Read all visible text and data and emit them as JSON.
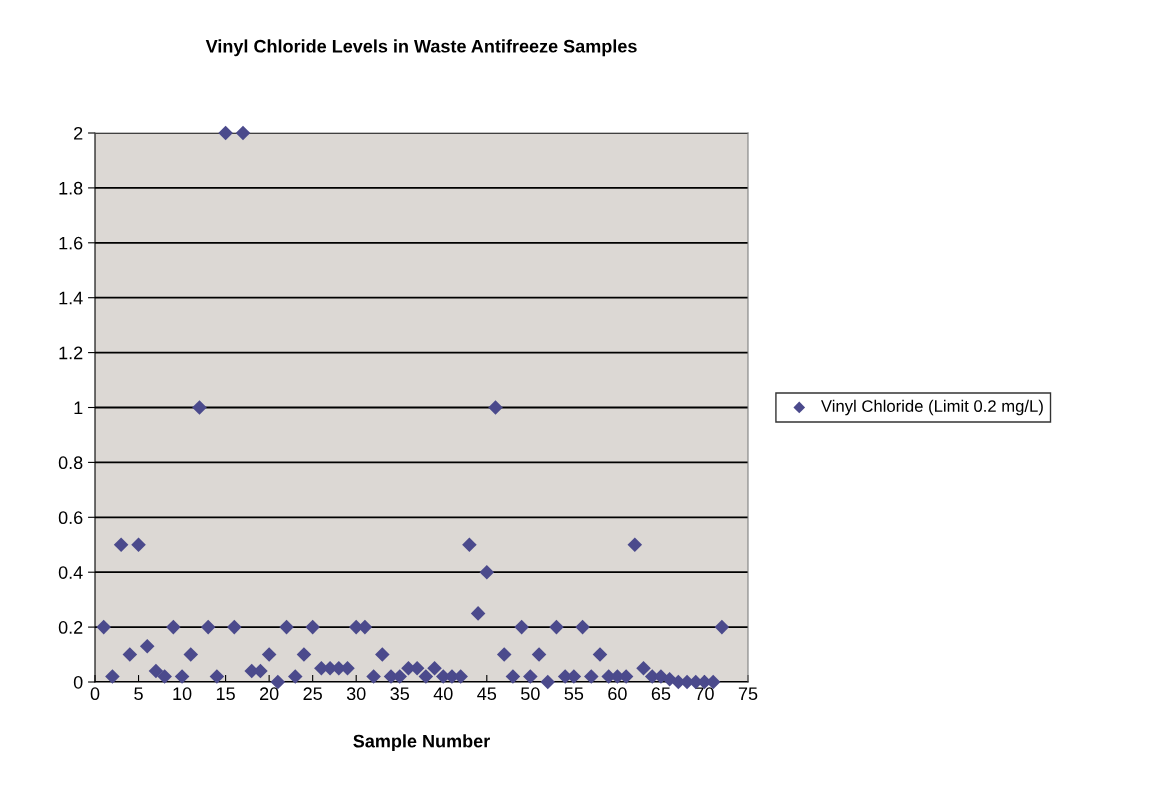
{
  "chart_data": {
    "type": "scatter",
    "title": "Vinyl Chloride Levels in Waste Antifreeze Samples",
    "xlabel": "Sample Number",
    "x": [
      1,
      2,
      3,
      4,
      5,
      6,
      7,
      8,
      9,
      10,
      11,
      12,
      13,
      14,
      15,
      16,
      17,
      18,
      19,
      20,
      21,
      22,
      23,
      24,
      25,
      26,
      27,
      28,
      29,
      30,
      31,
      32,
      33,
      34,
      35,
      36,
      37,
      38,
      39,
      40,
      41,
      42,
      43,
      44,
      45,
      46,
      47,
      48,
      49,
      50,
      51,
      52,
      53,
      54,
      55,
      56,
      57,
      58,
      59,
      60,
      61,
      62,
      63,
      64,
      65,
      66,
      67,
      68,
      69,
      70,
      71,
      72
    ],
    "series": [
      {
        "name": "Vinyl Chloride (Limit 0.2 mg/L)",
        "color": "#4b4a8c",
        "values": [
          0.2,
          0.02,
          0.5,
          0.1,
          0.5,
          0.13,
          0.04,
          0.02,
          0.2,
          0.02,
          0.1,
          1,
          0.2,
          0.02,
          2,
          0.2,
          2,
          0.04,
          0.04,
          0.1,
          0,
          0.2,
          0.02,
          0.1,
          0.2,
          0.05,
          0.05,
          0.05,
          0.05,
          0.2,
          0.2,
          0.02,
          0.1,
          0.02,
          0.02,
          0.05,
          0.05,
          0.02,
          0.05,
          0.02,
          0.02,
          0.02,
          0.5,
          0.25,
          0.4,
          1,
          0.1,
          0.02,
          0.2,
          0.02,
          0.1,
          0,
          0.2,
          0.02,
          0.02,
          0.2,
          0.02,
          0.1,
          0.02,
          0.02,
          0.02,
          0.5,
          0.05,
          0.02,
          0.02,
          0.01,
          0,
          0,
          0,
          0,
          0,
          0.2
        ]
      }
    ],
    "xlim": [
      0,
      75
    ],
    "xticks": [
      0,
      5,
      10,
      15,
      20,
      25,
      30,
      35,
      40,
      45,
      50,
      55,
      60,
      65,
      70,
      75
    ],
    "ylim": [
      0,
      2
    ],
    "yticks": [
      0,
      0.2,
      0.4,
      0.6,
      0.8,
      1,
      1.2,
      1.4,
      1.6,
      1.8,
      2
    ],
    "grid": "y",
    "legend": "right",
    "marker": "diamond"
  }
}
